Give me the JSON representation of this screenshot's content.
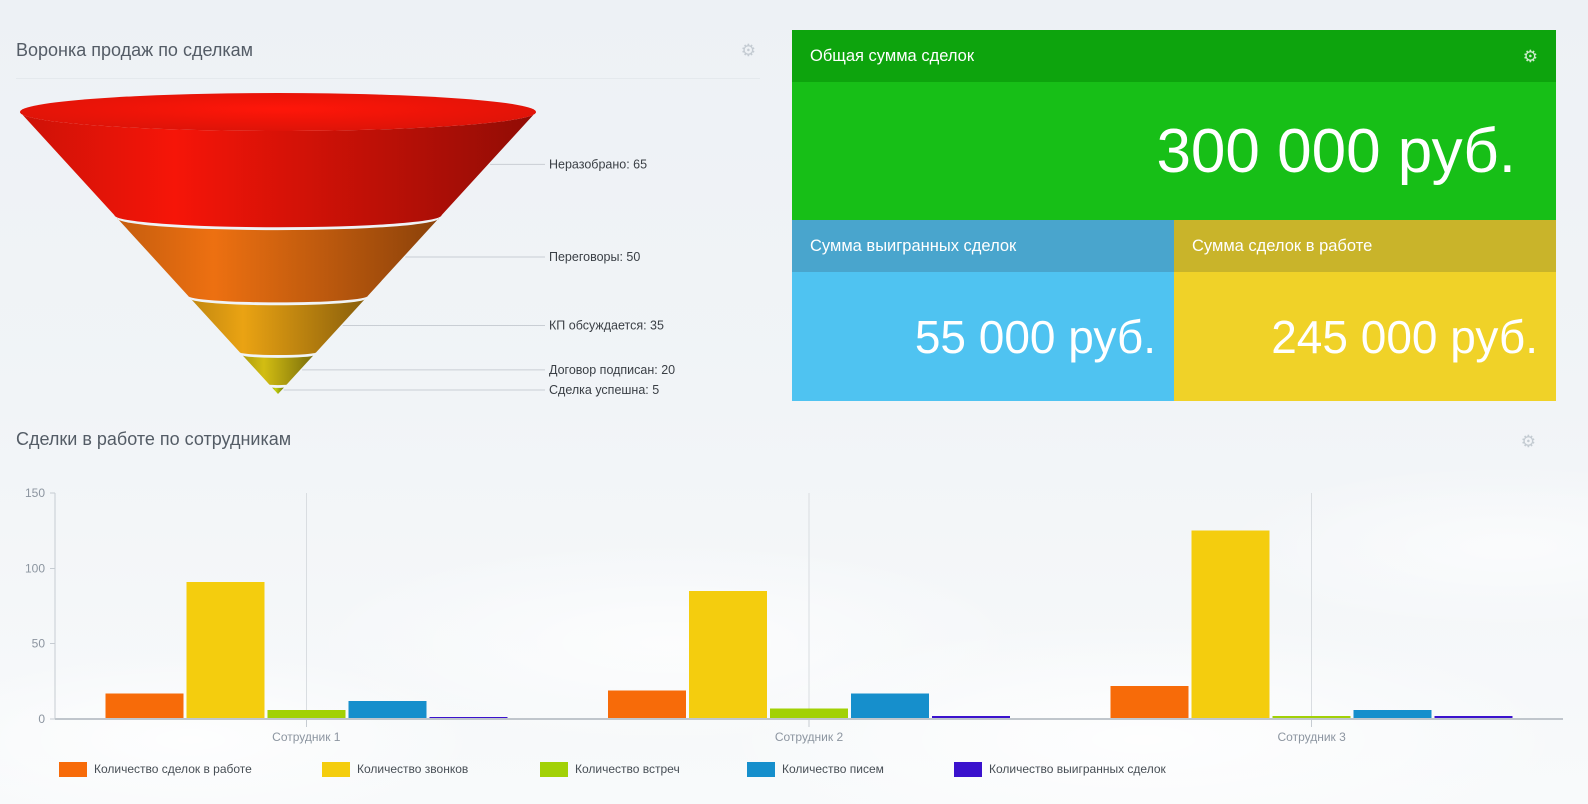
{
  "icons": {
    "settings": "⚙"
  },
  "funnel_widget": {
    "title": "Воронка продаж по сделкам"
  },
  "summary_widget": {
    "total": {
      "title": "Общая сумма сделок",
      "value": "300 000 руб.",
      "header_color": "#0da40d",
      "body_color": "#17bf17"
    },
    "won": {
      "title": "Сумма выигранных сделок",
      "value": "55 000 руб.",
      "header_color": "#49a5cd",
      "body_color": "#4fc3f1"
    },
    "in_progress": {
      "title": "Сумма сделок в работе",
      "value": "245 000 руб.",
      "header_color": "#c9b42a",
      "body_color": "#f0d228"
    }
  },
  "bar_widget": {
    "title": "Сделки в работе по сотрудникам"
  },
  "chart_data": [
    {
      "type": "funnel",
      "title": "Воронка продаж по сделкам",
      "label_format": "{label}: {value}",
      "stages": [
        {
          "label": "Неразобрано",
          "value": 65,
          "color": "#e81408"
        },
        {
          "label": "Переговоры",
          "value": 50,
          "color": "#e06a10"
        },
        {
          "label": "КП обсуждается",
          "value": 35,
          "color": "#dd9a12"
        },
        {
          "label": "Договор подписан",
          "value": 20,
          "color": "#c6b211"
        },
        {
          "label": "Сделка успешна",
          "value": 5,
          "color": "#b8c40e"
        }
      ]
    },
    {
      "type": "bar",
      "title": "Сделки в работе по сотрудникам",
      "categories": [
        "Сотрудник 1",
        "Сотрудник 2",
        "Сотрудник 3"
      ],
      "series": [
        {
          "name": "Количество сделок в работе",
          "color": "#f76b09",
          "values": [
            17,
            19,
            22
          ]
        },
        {
          "name": "Количество звонков",
          "color": "#f4cd0e",
          "values": [
            91,
            85,
            125
          ]
        },
        {
          "name": "Количество встреч",
          "color": "#a2d106",
          "values": [
            6,
            7,
            2
          ]
        },
        {
          "name": "Количество писем",
          "color": "#168fcc",
          "values": [
            12,
            17,
            6
          ]
        },
        {
          "name": "Количество выигранных сделок",
          "color": "#3a12cd",
          "values": [
            1,
            2,
            2
          ]
        }
      ],
      "ylim": [
        0,
        150
      ],
      "yticks": [
        0,
        50,
        100,
        150
      ],
      "grid": "vertical-category-lines",
      "legend_position": "bottom"
    }
  ]
}
